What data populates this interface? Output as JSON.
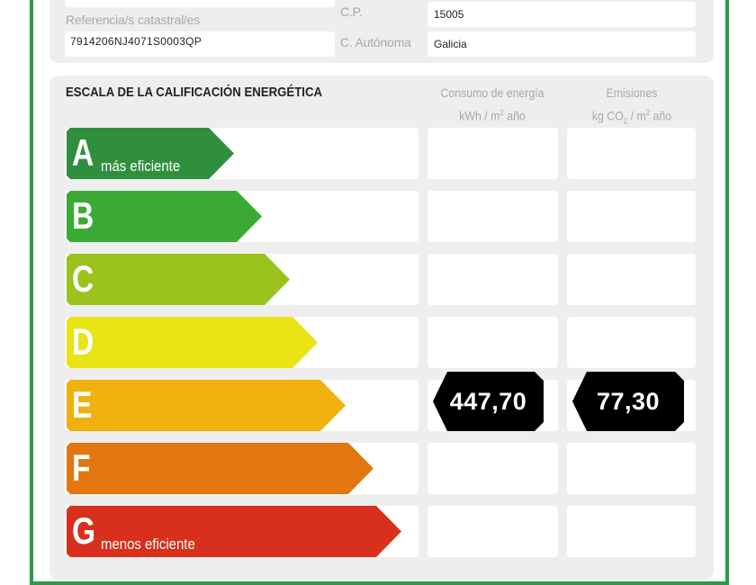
{
  "header": {
    "ref_label": "Referencia/s catastral/es",
    "ref_value": "7914206NJ4071S0003QP",
    "cp_label": "C.P.",
    "cp_value": "15005",
    "ca_label": "C. Autónoma",
    "ca_value": "Galicia"
  },
  "scale": {
    "title": "ESCALA DE LA CALIFICACIÓN ENERGÉTICA",
    "col1_line1": "Consumo de energía",
    "col1_line2": "kWh / m",
    "col1_sup": "2",
    "col1_tail": " año",
    "col2_line1": "Emisiones",
    "col2_line2a": "kg CO",
    "col2_sub": "2",
    "col2_line2b": " / m",
    "col2_sup": "2",
    "col2_tail": " año",
    "classes": [
      {
        "letter": "A",
        "note": "más eficiente",
        "color": "#2f8f3f"
      },
      {
        "letter": "B",
        "note": "",
        "color": "#3aaa35"
      },
      {
        "letter": "C",
        "note": "",
        "color": "#9ac31c"
      },
      {
        "letter": "D",
        "note": "",
        "color": "#e8e415"
      },
      {
        "letter": "E",
        "note": "",
        "color": "#f0b10f"
      },
      {
        "letter": "F",
        "note": "",
        "color": "#e2770f"
      },
      {
        "letter": "G",
        "note": "menos eficiente",
        "color": "#d8301c"
      }
    ],
    "rating_class": "E",
    "consumo_value": "447,70",
    "emisiones_value": "77,30"
  }
}
